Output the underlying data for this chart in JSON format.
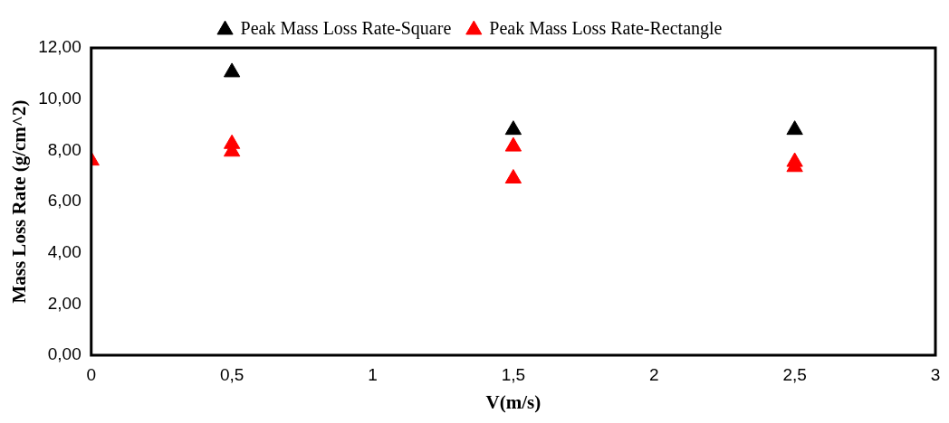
{
  "chart_data": {
    "type": "scatter",
    "xlabel": "V(m/s)",
    "ylabel": "Mass Loss Rate (g/cm^2)",
    "marker": "triangle",
    "legend": "top",
    "grid": false,
    "xlim": [
      0,
      3
    ],
    "xticks": [
      0,
      {
        "value": 0.5,
        "label": "0,5"
      },
      1,
      {
        "value": 1.5,
        "label": "1,5"
      },
      2,
      {
        "value": 2.5,
        "label": "2,5"
      },
      3
    ],
    "ylim": [
      0,
      12
    ],
    "yticks": [
      {
        "value": 0,
        "label": "0,00"
      },
      {
        "value": 2,
        "label": "2,00"
      },
      {
        "value": 4,
        "label": "4,00"
      },
      {
        "value": 6,
        "label": "6,00"
      },
      {
        "value": 8,
        "label": "8,00"
      },
      {
        "value": 10,
        "label": "10,00"
      },
      {
        "value": 12,
        "label": "12,00"
      }
    ],
    "series": [
      {
        "name": "Peak Mass Loss Rate-Square",
        "color": "#000000",
        "x": [
          0.5,
          1.5,
          2.5
        ],
        "values": [
          11.05,
          8.8,
          8.8
        ]
      },
      {
        "name": "Peak Mass Loss Rate-Rectangle",
        "color": "#ff0000",
        "x": [
          0,
          0.5,
          0.5,
          1.5,
          1.5,
          2.5,
          2.5
        ],
        "values": [
          7.6,
          8.25,
          7.95,
          8.15,
          6.9,
          7.55,
          7.35
        ]
      }
    ]
  }
}
